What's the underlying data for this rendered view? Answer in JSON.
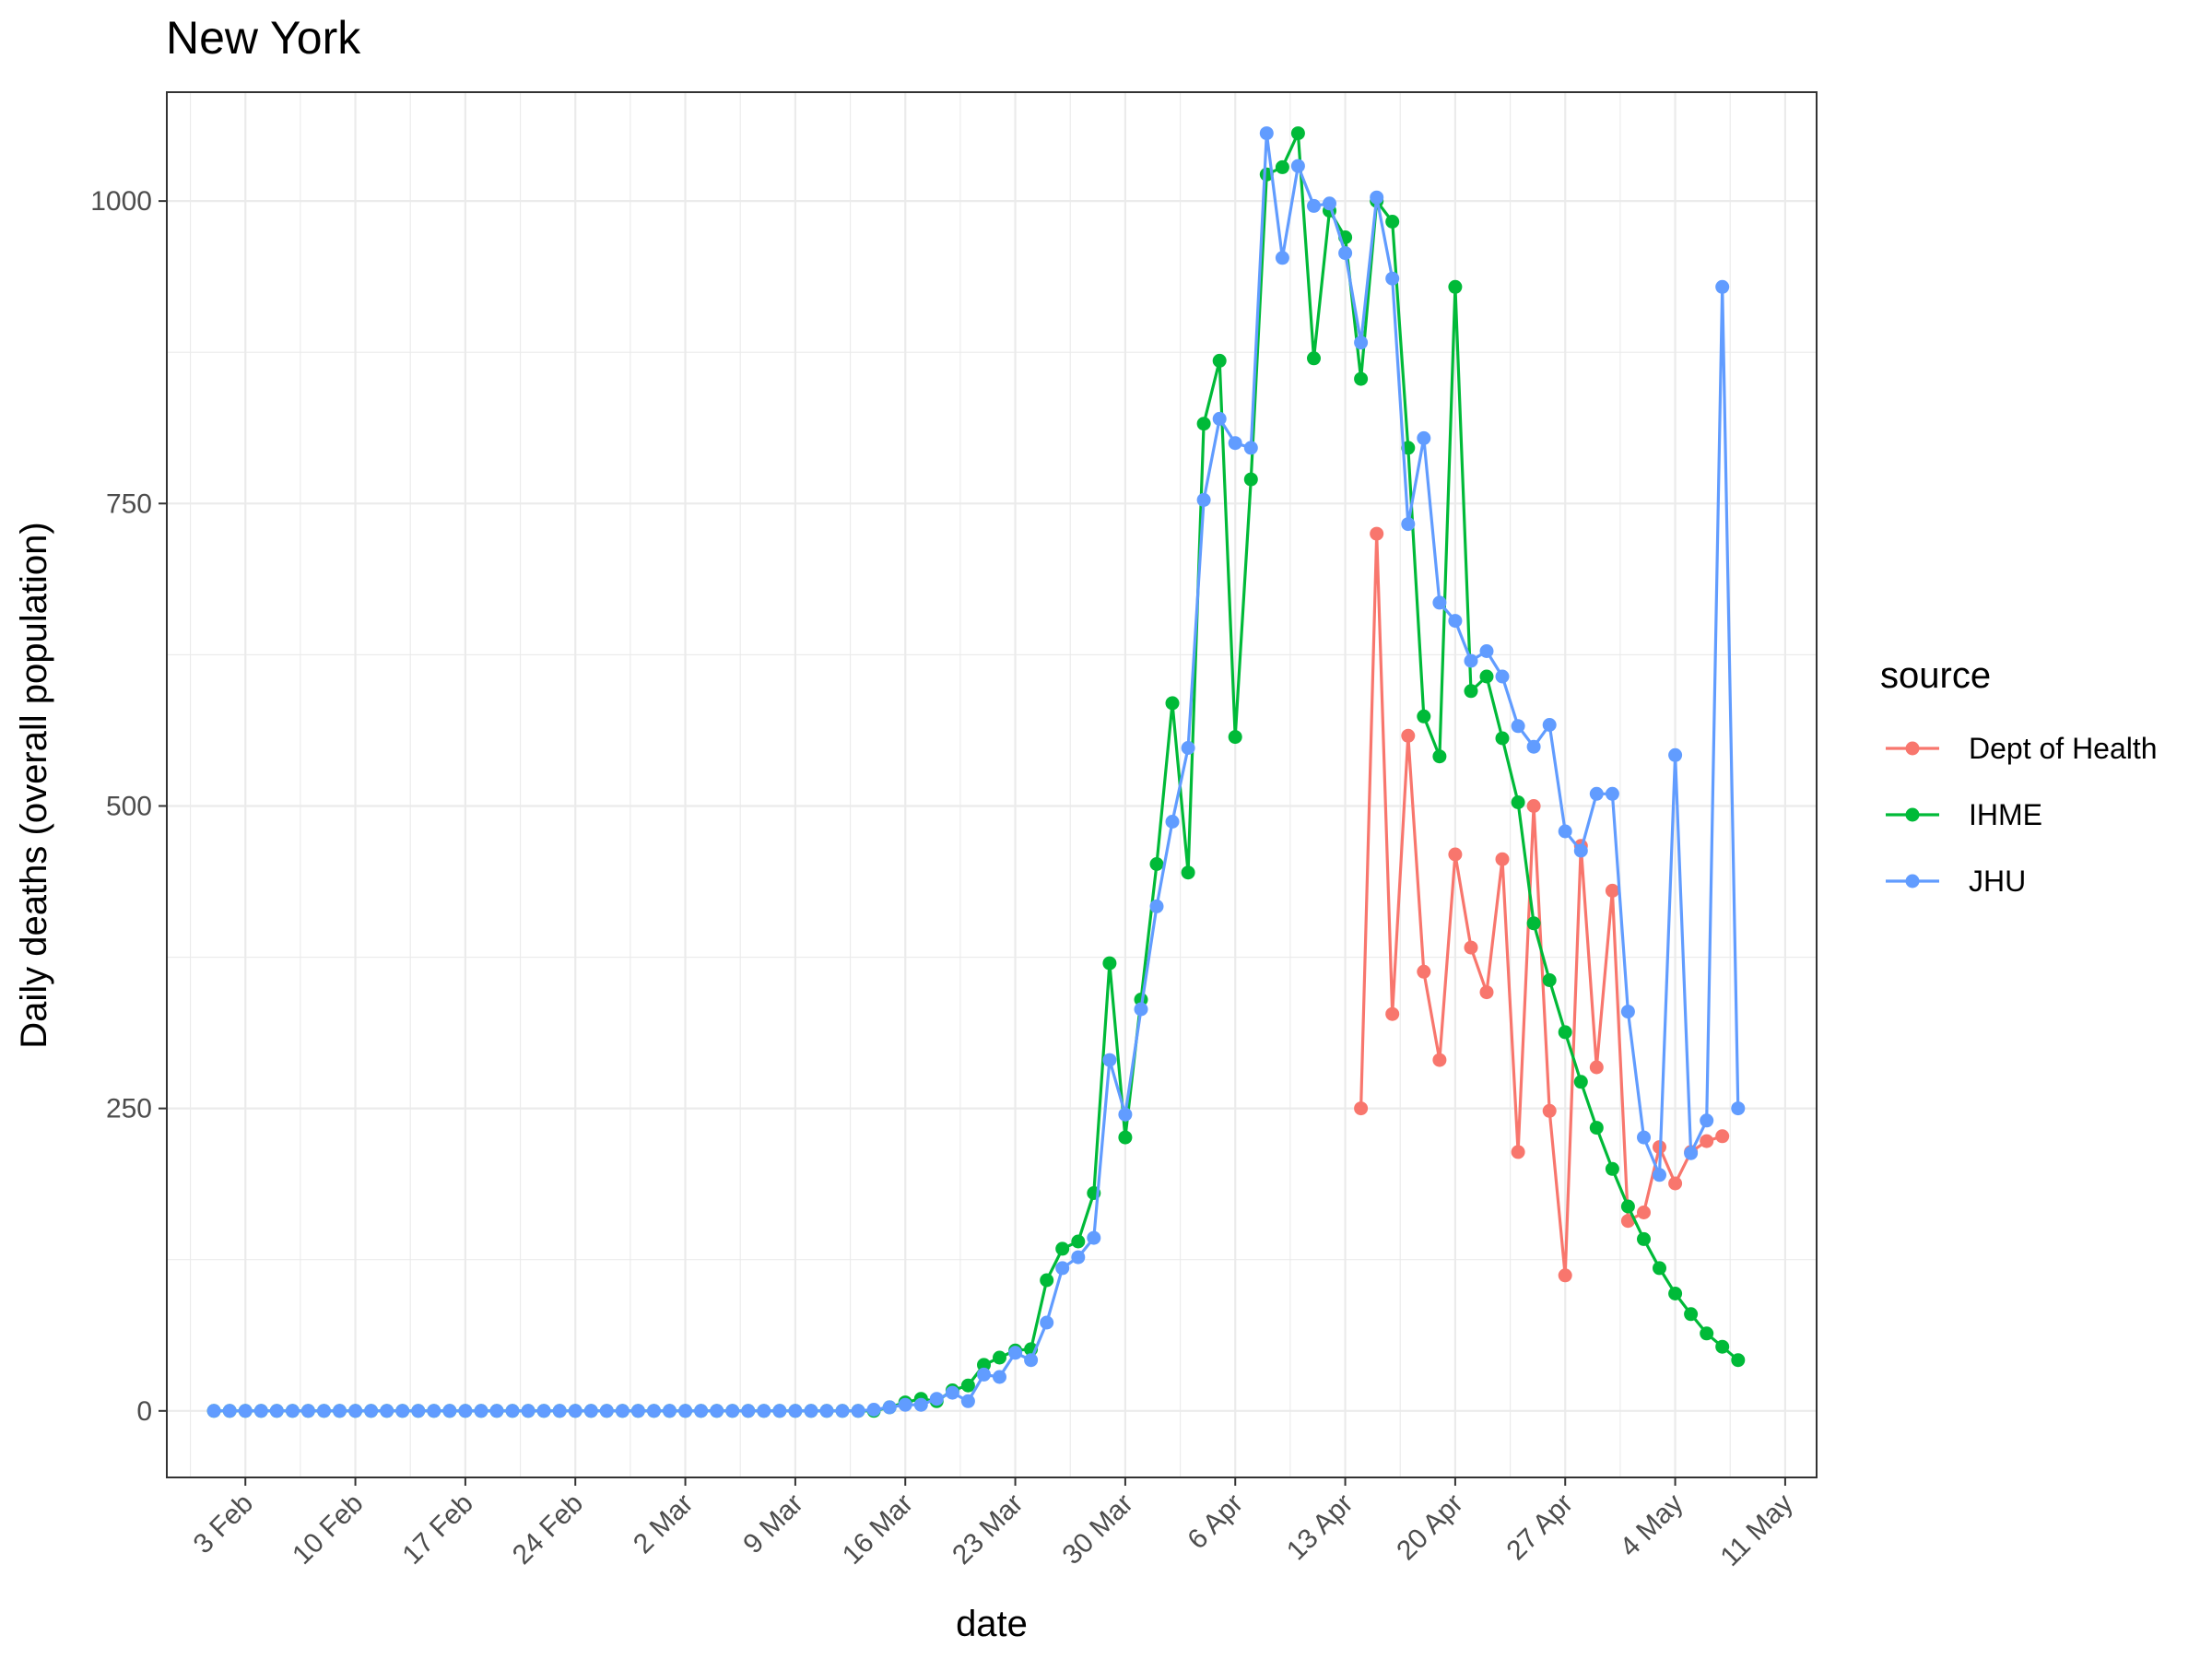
{
  "chart_data": {
    "type": "line",
    "title": "New York",
    "xlabel": "date",
    "ylabel": "Daily deaths (overall population)",
    "x_type": "date",
    "x_start": "2020-02-01",
    "xlim": [
      "2020-01-29",
      "2020-05-13"
    ],
    "ylim": [
      -55,
      1090
    ],
    "x_ticks": [
      {
        "date": "2020-02-03",
        "label": "3 Feb"
      },
      {
        "date": "2020-02-10",
        "label": "10 Feb"
      },
      {
        "date": "2020-02-17",
        "label": "17 Feb"
      },
      {
        "date": "2020-02-24",
        "label": "24 Feb"
      },
      {
        "date": "2020-03-02",
        "label": "2 Mar"
      },
      {
        "date": "2020-03-09",
        "label": "9 Mar"
      },
      {
        "date": "2020-03-16",
        "label": "16 Mar"
      },
      {
        "date": "2020-03-23",
        "label": "23 Mar"
      },
      {
        "date": "2020-03-30",
        "label": "30 Mar"
      },
      {
        "date": "2020-04-06",
        "label": "6 Apr"
      },
      {
        "date": "2020-04-13",
        "label": "13 Apr"
      },
      {
        "date": "2020-04-20",
        "label": "20 Apr"
      },
      {
        "date": "2020-04-27",
        "label": "27 Apr"
      },
      {
        "date": "2020-05-04",
        "label": "4 May"
      },
      {
        "date": "2020-05-11",
        "label": "11 May"
      }
    ],
    "y_ticks": [
      0,
      250,
      500,
      750,
      1000
    ],
    "y_minor_ticks": [
      125,
      375,
      625,
      875
    ],
    "grid": true,
    "legend": {
      "title": "source",
      "position": "right"
    },
    "series": [
      {
        "name": "Dept of Health",
        "color": "#F8766D",
        "start": "2020-04-14",
        "values": [
          250,
          725,
          328,
          558,
          363,
          290,
          460,
          383,
          346,
          456,
          214,
          500,
          248,
          112,
          467,
          284,
          430,
          157,
          164,
          218,
          188,
          214,
          223,
          227
        ]
      },
      {
        "name": "IHME",
        "color": "#00BA38",
        "start": "2020-02-01",
        "values": [
          0,
          0,
          0,
          0,
          0,
          0,
          0,
          0,
          0,
          0,
          0,
          0,
          0,
          0,
          0,
          0,
          0,
          0,
          0,
          0,
          0,
          0,
          0,
          0,
          0,
          0,
          0,
          0,
          0,
          0,
          0,
          0,
          0,
          0,
          0,
          0,
          0,
          0,
          0,
          0,
          0,
          0,
          0,
          3,
          7,
          10,
          8,
          17,
          21,
          38,
          44,
          50,
          51,
          108,
          134,
          140,
          180,
          370,
          226,
          340,
          452,
          585,
          445,
          816,
          868,
          557,
          770,
          1022,
          1028,
          1056,
          870,
          992,
          970,
          853,
          1000,
          983,
          796,
          574,
          541,
          929,
          595,
          607,
          556,
          503,
          403,
          356,
          313,
          272,
          234,
          200,
          169,
          142,
          118,
          97,
          80,
          64,
          53,
          42
        ]
      },
      {
        "name": "JHU",
        "color": "#619CFF",
        "start": "2020-02-01",
        "values": [
          0,
          0,
          0,
          0,
          0,
          0,
          0,
          0,
          0,
          0,
          0,
          0,
          0,
          0,
          0,
          0,
          0,
          0,
          0,
          0,
          0,
          0,
          0,
          0,
          0,
          0,
          0,
          0,
          0,
          0,
          0,
          0,
          0,
          0,
          0,
          0,
          0,
          0,
          0,
          0,
          0,
          0,
          1,
          3,
          5,
          5,
          10,
          15,
          8,
          30,
          28,
          48,
          42,
          73,
          118,
          127,
          143,
          290,
          245,
          332,
          417,
          487,
          548,
          753,
          820,
          800,
          796,
          1056,
          953,
          1029,
          996,
          998,
          957,
          883,
          1003,
          936,
          733,
          804,
          668,
          653,
          620,
          628,
          607,
          566,
          549,
          567,
          479,
          463,
          510,
          510,
          330,
          226,
          195,
          542,
          213,
          240,
          929,
          250
        ]
      }
    ]
  }
}
